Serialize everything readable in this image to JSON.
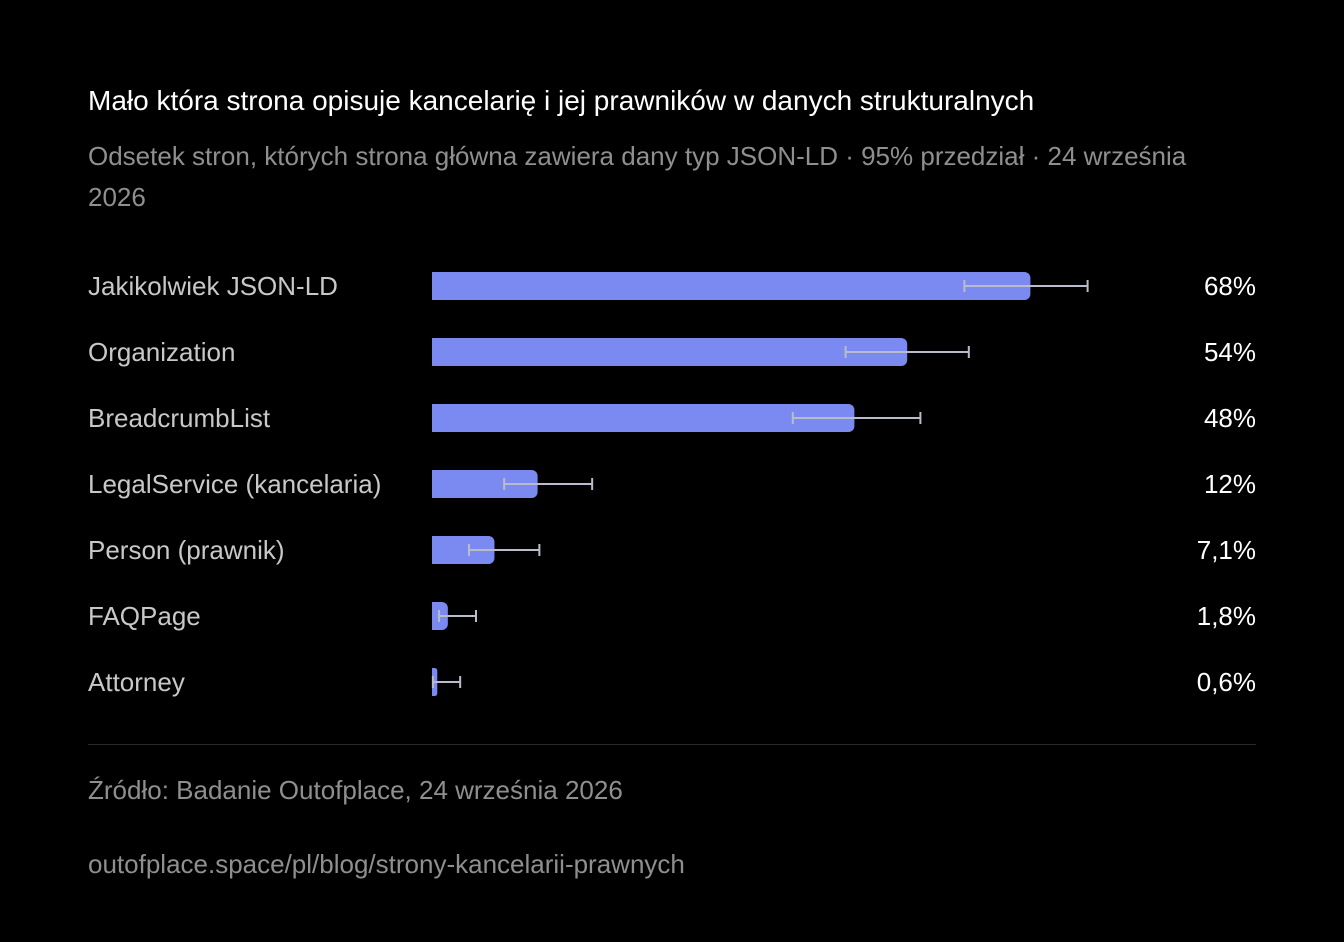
{
  "chart_data": {
    "type": "bar",
    "orientation": "horizontal",
    "title": "Mało która strona opisuje kancelarię i jej prawników w danych strukturalnych",
    "subtitle": "Odsetek stron, których strona główna zawiera dany typ JSON-LD · 95% przedział · 24 września 2026",
    "categories": [
      "Jakikolwiek JSON-LD",
      "Organization",
      "BreadcrumbList",
      "LegalService (kancelaria)",
      "Person (prawnik)",
      "FAQPage",
      "Attorney"
    ],
    "values": [
      68,
      54,
      48,
      12,
      7.1,
      1.8,
      0.6
    ],
    "value_labels": [
      "68%",
      "54%",
      "48%",
      "12%",
      "7,1%",
      "1,8%",
      "0,6%"
    ],
    "ci_low": [
      60.5,
      47,
      41,
      8.2,
      4.2,
      0.8,
      0.1
    ],
    "ci_high": [
      74.5,
      61,
      55.5,
      18.2,
      12.2,
      5,
      3.2
    ],
    "xlim": [
      0,
      100
    ],
    "grid": false,
    "legend": "none",
    "colors": {
      "bar": "#7b8af0",
      "error_bar": "#b9bccb"
    },
    "source": "Źródło: Badanie Outofplace, 24 września 2026",
    "url": "outofplace.space/pl/blog/strony-kancelarii-prawnych"
  }
}
